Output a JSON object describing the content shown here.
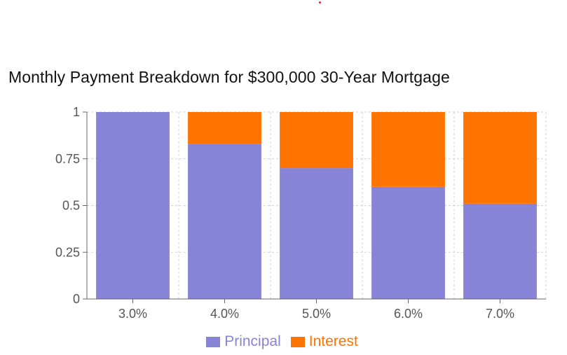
{
  "title": "Monthly Payment Breakdown for $300,000 30-Year Mortgage",
  "colors": {
    "principal": "#8783d6",
    "interest": "#ff7300",
    "axis": "#666666",
    "grid": "#d0d0d0",
    "tick_text": "#555555",
    "title_text": "#111111"
  },
  "chart_data": {
    "type": "bar",
    "stacked": true,
    "title": "Monthly Payment Breakdown for $300,000 30-Year Mortgage",
    "xlabel": "",
    "ylabel": "",
    "categories": [
      "3.0%",
      "4.0%",
      "5.0%",
      "6.0%",
      "7.0%"
    ],
    "series": [
      {
        "name": "Principal",
        "values": [
          1.0,
          0.83,
          0.7,
          0.6,
          0.51
        ]
      },
      {
        "name": "Interest",
        "values": [
          0.0,
          0.17,
          0.3,
          0.4,
          0.49
        ]
      }
    ],
    "ylim": [
      0,
      1
    ],
    "y_ticks": [
      0,
      0.25,
      0.5,
      0.75,
      1
    ],
    "y_tick_labels": [
      "0",
      "0.25",
      "0.5",
      "0.75",
      "1"
    ],
    "grid": true,
    "legend_position": "bottom-center"
  }
}
